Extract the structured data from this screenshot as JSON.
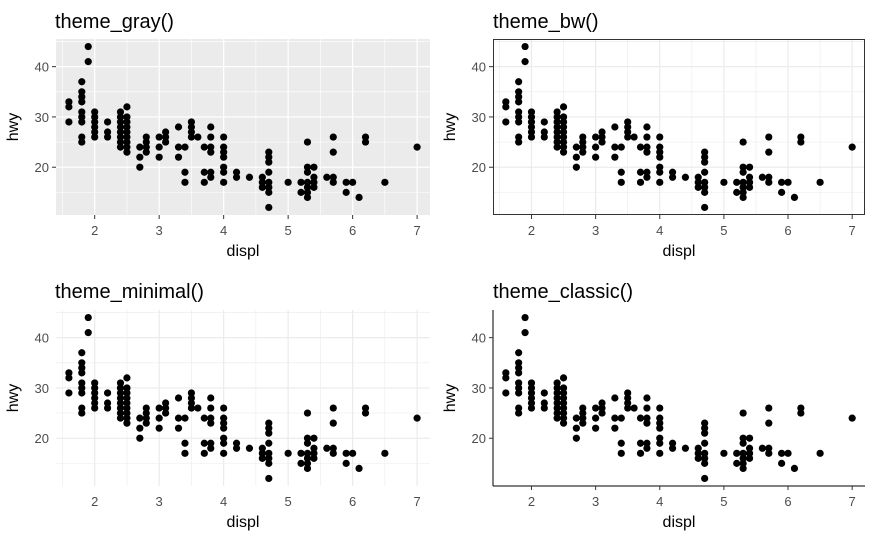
{
  "chart_data": [
    {
      "type": "scatter",
      "title": "theme_gray()",
      "theme": "gray",
      "xlabel": "displ",
      "ylabel": "hwy",
      "xlim": [
        1.4,
        7.2
      ],
      "ylim": [
        10.5,
        45.5
      ],
      "xticks": [
        2,
        3,
        4,
        5,
        6,
        7
      ],
      "yticks": [
        20,
        30,
        40
      ],
      "xtick_labels": [
        "2",
        "3",
        "4",
        "5",
        "6",
        "7"
      ],
      "ytick_labels": [
        "20",
        "30",
        "40"
      ],
      "grid": true,
      "panel_background": "#ebebeb",
      "grid_color": "#ffffff",
      "point_color": "#000000"
    },
    {
      "type": "scatter",
      "title": "theme_bw()",
      "theme": "bw",
      "xlabel": "displ",
      "ylabel": "hwy",
      "xlim": [
        1.4,
        7.2
      ],
      "ylim": [
        10.5,
        45.5
      ],
      "xticks": [
        2,
        3,
        4,
        5,
        6,
        7
      ],
      "yticks": [
        20,
        30,
        40
      ],
      "xtick_labels": [
        "2",
        "3",
        "4",
        "5",
        "6",
        "7"
      ],
      "ytick_labels": [
        "20",
        "30",
        "40"
      ],
      "grid": true,
      "panel_background": "#ffffff",
      "grid_color": "#ebebeb",
      "border_color": "#333333",
      "point_color": "#000000"
    },
    {
      "type": "scatter",
      "title": "theme_minimal()",
      "theme": "minimal",
      "xlabel": "displ",
      "ylabel": "hwy",
      "xlim": [
        1.4,
        7.2
      ],
      "ylim": [
        10.5,
        45.5
      ],
      "xticks": [
        2,
        3,
        4,
        5,
        6,
        7
      ],
      "yticks": [
        20,
        30,
        40
      ],
      "xtick_labels": [
        "2",
        "3",
        "4",
        "5",
        "6",
        "7"
      ],
      "ytick_labels": [
        "20",
        "30",
        "40"
      ],
      "grid": true,
      "panel_background": "#ffffff",
      "grid_color": "#ebebeb",
      "point_color": "#000000"
    },
    {
      "type": "scatter",
      "title": "theme_classic()",
      "theme": "classic",
      "xlabel": "displ",
      "ylabel": "hwy",
      "xlim": [
        1.4,
        7.2
      ],
      "ylim": [
        10.5,
        45.5
      ],
      "xticks": [
        2,
        3,
        4,
        5,
        6,
        7
      ],
      "yticks": [
        20,
        30,
        40
      ],
      "xtick_labels": [
        "2",
        "3",
        "4",
        "5",
        "6",
        "7"
      ],
      "ytick_labels": [
        "20",
        "30",
        "40"
      ],
      "grid": false,
      "panel_background": "#ffffff",
      "axis_line_color": "#000000",
      "point_color": "#000000"
    }
  ],
  "points": [
    [
      1.6,
      33
    ],
    [
      1.6,
      32
    ],
    [
      1.6,
      29
    ],
    [
      1.8,
      37
    ],
    [
      1.8,
      35
    ],
    [
      1.8,
      34
    ],
    [
      1.8,
      33
    ],
    [
      1.8,
      31
    ],
    [
      1.8,
      30
    ],
    [
      1.8,
      29
    ],
    [
      1.8,
      26
    ],
    [
      1.8,
      25
    ],
    [
      1.9,
      44
    ],
    [
      1.9,
      41
    ],
    [
      2.0,
      31
    ],
    [
      2.0,
      30
    ],
    [
      2.0,
      29
    ],
    [
      2.0,
      28
    ],
    [
      2.0,
      27
    ],
    [
      2.0,
      26
    ],
    [
      2.2,
      29
    ],
    [
      2.2,
      27
    ],
    [
      2.2,
      26
    ],
    [
      2.4,
      31
    ],
    [
      2.4,
      30
    ],
    [
      2.4,
      29
    ],
    [
      2.4,
      28
    ],
    [
      2.4,
      27
    ],
    [
      2.4,
      26
    ],
    [
      2.4,
      25
    ],
    [
      2.4,
      24
    ],
    [
      2.5,
      32
    ],
    [
      2.5,
      30
    ],
    [
      2.5,
      29
    ],
    [
      2.5,
      28
    ],
    [
      2.5,
      27
    ],
    [
      2.5,
      26
    ],
    [
      2.5,
      25
    ],
    [
      2.5,
      24
    ],
    [
      2.5,
      23
    ],
    [
      2.7,
      24
    ],
    [
      2.7,
      22
    ],
    [
      2.7,
      20
    ],
    [
      2.8,
      26
    ],
    [
      2.8,
      25
    ],
    [
      2.8,
      24
    ],
    [
      2.8,
      23
    ],
    [
      3.0,
      26
    ],
    [
      3.0,
      24
    ],
    [
      3.0,
      22
    ],
    [
      3.1,
      27
    ],
    [
      3.1,
      26
    ],
    [
      3.1,
      25
    ],
    [
      3.3,
      28
    ],
    [
      3.3,
      24
    ],
    [
      3.3,
      22
    ],
    [
      3.4,
      24
    ],
    [
      3.4,
      19
    ],
    [
      3.4,
      17
    ],
    [
      3.5,
      29
    ],
    [
      3.5,
      28
    ],
    [
      3.5,
      27
    ],
    [
      3.5,
      26
    ],
    [
      3.6,
      26
    ],
    [
      3.7,
      24
    ],
    [
      3.7,
      19
    ],
    [
      3.7,
      17
    ],
    [
      3.8,
      28
    ],
    [
      3.8,
      26
    ],
    [
      3.8,
      24
    ],
    [
      3.8,
      23
    ],
    [
      3.8,
      19
    ],
    [
      3.8,
      18
    ],
    [
      4.0,
      26
    ],
    [
      4.0,
      24
    ],
    [
      4.0,
      23
    ],
    [
      4.0,
      22
    ],
    [
      4.0,
      20
    ],
    [
      4.0,
      19
    ],
    [
      4.0,
      17
    ],
    [
      4.2,
      19
    ],
    [
      4.2,
      18
    ],
    [
      4.4,
      18
    ],
    [
      4.6,
      18
    ],
    [
      4.6,
      17
    ],
    [
      4.6,
      16
    ],
    [
      4.7,
      23
    ],
    [
      4.7,
      22
    ],
    [
      4.7,
      21
    ],
    [
      4.7,
      19
    ],
    [
      4.7,
      17
    ],
    [
      4.7,
      16
    ],
    [
      4.7,
      15
    ],
    [
      4.7,
      12
    ],
    [
      5.0,
      17
    ],
    [
      5.2,
      17
    ],
    [
      5.2,
      15
    ],
    [
      5.3,
      25
    ],
    [
      5.3,
      20
    ],
    [
      5.3,
      19
    ],
    [
      5.3,
      17
    ],
    [
      5.3,
      16
    ],
    [
      5.3,
      15
    ],
    [
      5.3,
      14
    ],
    [
      5.4,
      20
    ],
    [
      5.4,
      18
    ],
    [
      5.4,
      17
    ],
    [
      5.4,
      16
    ],
    [
      5.6,
      18
    ],
    [
      5.7,
      26
    ],
    [
      5.7,
      23
    ],
    [
      5.7,
      18
    ],
    [
      5.7,
      17
    ],
    [
      5.9,
      17
    ],
    [
      5.9,
      15
    ],
    [
      6.0,
      17
    ],
    [
      6.1,
      14
    ],
    [
      6.2,
      26
    ],
    [
      6.2,
      25
    ],
    [
      6.5,
      17
    ],
    [
      7.0,
      24
    ]
  ]
}
